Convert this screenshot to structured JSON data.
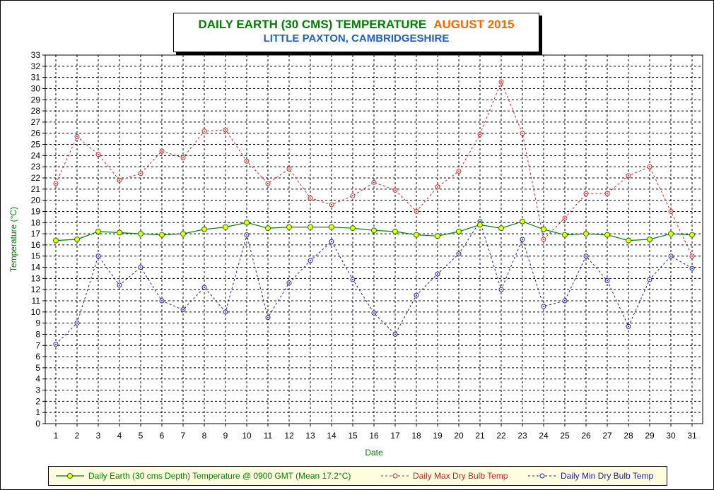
{
  "title": {
    "main": "DAILY EARTH (30 CMS) TEMPERATURE",
    "month": "AUGUST 2015",
    "location": "LITTLE PAXTON, CAMBRIDGESHIRE"
  },
  "colors": {
    "earth": "#008000",
    "earth_marker": "#ffff00",
    "max": "#cc2222",
    "min": "#1a1aa0",
    "title_main": "#008000",
    "title_month": "#ff6600",
    "title_location": "#1f5fcc",
    "xlabel": "#008000",
    "ylabel": "#008000",
    "grid": "#000000"
  },
  "chart_data": {
    "type": "line",
    "xlabel": "Date",
    "ylabel": "Temperature (°C)",
    "ylim": [
      0,
      33
    ],
    "grid": true,
    "legend_position": "bottom",
    "categories": [
      "1",
      "2",
      "3",
      "4",
      "5",
      "6",
      "7",
      "8",
      "9",
      "10",
      "11",
      "12",
      "13",
      "14",
      "15",
      "16",
      "17",
      "18",
      "19",
      "20",
      "21",
      "22",
      "23",
      "24",
      "25",
      "26",
      "27",
      "28",
      "29",
      "30",
      "31"
    ],
    "series": [
      {
        "name": "Daily Earth (30 cms Depth) Temperature @ 0900 GMT (Mean 17.2°C)",
        "style": "solid",
        "values": [
          16.4,
          16.5,
          17.2,
          17.1,
          17.0,
          16.9,
          17.0,
          17.4,
          17.6,
          18.0,
          17.5,
          17.6,
          17.6,
          17.6,
          17.5,
          17.3,
          17.2,
          16.9,
          16.8,
          17.2,
          17.8,
          17.5,
          18.1,
          17.4,
          16.9,
          17.0,
          16.9,
          16.4,
          16.5,
          17.0,
          16.9
        ]
      },
      {
        "name": "Daily Max Dry Bulb Temp",
        "style": "dashed",
        "values": [
          21.5,
          25.7,
          24.1,
          21.8,
          22.4,
          24.4,
          23.8,
          26.2,
          26.3,
          23.5,
          21.5,
          22.8,
          20.2,
          19.6,
          20.4,
          21.6,
          20.9,
          19.0,
          21.2,
          22.6,
          25.9,
          30.6,
          26.0,
          16.5,
          18.4,
          20.6,
          20.6,
          22.2,
          23.0,
          19.0,
          15.0
        ]
      },
      {
        "name": "Daily Min Dry Bulb Temp",
        "style": "dashed",
        "values": [
          7.1,
          9.0,
          15.0,
          12.4,
          14.0,
          11.0,
          10.2,
          12.2,
          10.0,
          16.9,
          9.5,
          12.6,
          14.6,
          16.3,
          12.9,
          9.9,
          8.0,
          11.5,
          13.4,
          15.2,
          18.1,
          12.0,
          16.5,
          10.5,
          11.0,
          15.0,
          12.8,
          8.7,
          12.9,
          15.0,
          13.9
        ]
      }
    ]
  }
}
